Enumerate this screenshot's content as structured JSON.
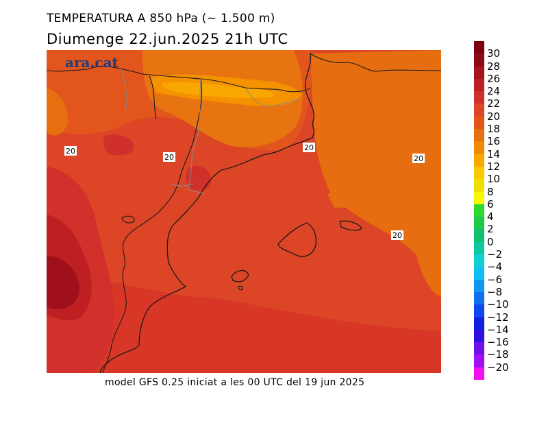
{
  "header": {
    "title": "TEMPERATURA A 850 hPa (~ 1.500 m)",
    "subtitle": "Diumenge  22.jun.2025 21h UTC"
  },
  "footer": {
    "model_info": "model GFS 0.25 iniciat a les 00 UTC del 19 jun 2025"
  },
  "map": {
    "logo_text": "ara.cat",
    "contour_labels": [
      "20",
      "20",
      "20",
      "20",
      "20"
    ]
  },
  "colorbar": {
    "labels": [
      "30",
      "28",
      "26",
      "24",
      "22",
      "20",
      "18",
      "16",
      "14",
      "12",
      "10",
      "8",
      "6",
      "4",
      "2",
      "0",
      "−2",
      "−4",
      "−6",
      "−8",
      "−10",
      "−12",
      "−14",
      "−16",
      "−18",
      "−20"
    ],
    "colors": [
      "#7a0010",
      "#8c0a18",
      "#a6141e",
      "#bb1f24",
      "#d0302a",
      "#dc4528",
      "#e2561c",
      "#e66f10",
      "#f08a00",
      "#f8a800",
      "#f8c800",
      "#f0e000",
      "#f8f800",
      "#2ed82e",
      "#1ec848",
      "#10c070",
      "#10c8a0",
      "#10d0d0",
      "#10c0f0",
      "#1098f0",
      "#1070f0",
      "#1048f0",
      "#1020e0",
      "#3010e0",
      "#7010e8",
      "#a010f0",
      "#f010f0"
    ]
  }
}
